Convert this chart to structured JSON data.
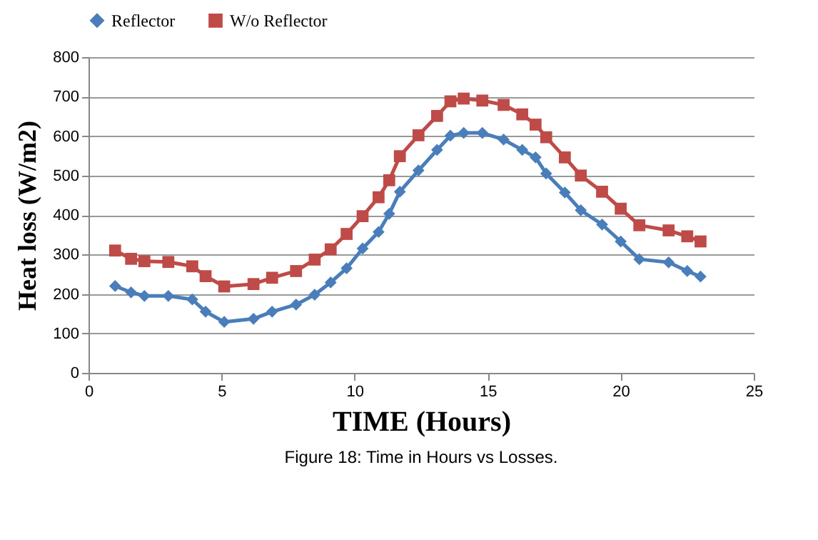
{
  "chart_data": {
    "type": "line",
    "xlabel": "TIME  (Hours)",
    "ylabel": "Heat loss (W/m2)",
    "annotations": [
      "Figure 18: Time in Hours vs Losses."
    ],
    "x": [
      1.0,
      1.6,
      2.1,
      3.0,
      3.9,
      4.4,
      5.1,
      6.2,
      6.9,
      7.8,
      8.5,
      9.1,
      9.7,
      10.3,
      10.9,
      11.3,
      11.7,
      12.4,
      13.1,
      13.6,
      14.1,
      14.8,
      15.6,
      16.3,
      16.8,
      17.2,
      17.9,
      18.5,
      19.3,
      20.0,
      20.7,
      21.8,
      22.5,
      23.0
    ],
    "series": [
      {
        "name": "Reflector",
        "color": "#4a7ebb",
        "marker": "diamond",
        "values": [
          220,
          204,
          195,
          195,
          186,
          155,
          129,
          137,
          155,
          173,
          198,
          229,
          265,
          315,
          357,
          403,
          459,
          513,
          565,
          601,
          608,
          608,
          591,
          565,
          546,
          505,
          457,
          412,
          376,
          333,
          288,
          280,
          258,
          244
        ]
      },
      {
        "name": "W/o Reflector",
        "color": "#be4b48",
        "marker": "square",
        "values": [
          310,
          289,
          283,
          281,
          270,
          245,
          219,
          225,
          241,
          258,
          287,
          313,
          352,
          397,
          445,
          488,
          549,
          602,
          651,
          688,
          695,
          690,
          679,
          655,
          629,
          597,
          546,
          500,
          459,
          416,
          374,
          361,
          346,
          333
        ]
      }
    ],
    "xlim": [
      0,
      25
    ],
    "xticks": [
      0,
      5,
      10,
      15,
      20,
      25
    ],
    "ylim": [
      0,
      800
    ],
    "yticks": [
      0,
      100,
      200,
      300,
      400,
      500,
      600,
      700,
      800
    ],
    "grid": "y",
    "legend": "top",
    "line_style": "solid"
  }
}
